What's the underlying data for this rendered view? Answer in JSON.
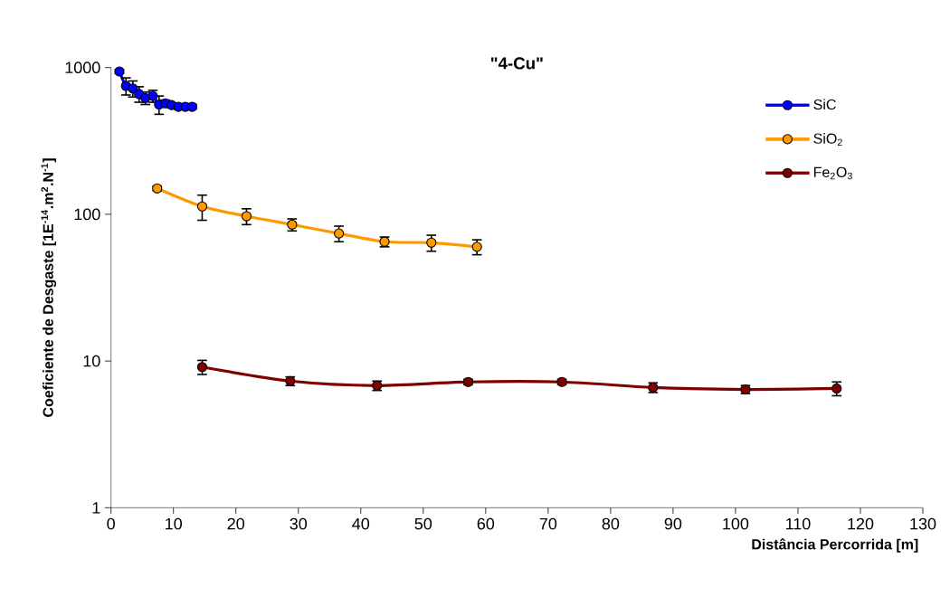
{
  "chart_data": {
    "type": "line",
    "title": "\"4-Cu\"",
    "xlabel": "Distância Percorrida [m]",
    "ylabel": "Coeficiente de Desgaste [1E$^{-14}$.m$^{2}$.N$^{-1}$]",
    "log": "y",
    "xlim": [
      0,
      130
    ],
    "xticks": [
      0,
      10,
      20,
      30,
      40,
      50,
      60,
      70,
      80,
      90,
      100,
      110,
      120,
      130
    ],
    "ylim": [
      1,
      1000
    ],
    "yticks": [
      1,
      10,
      100,
      1000
    ],
    "grid": false,
    "legend": "top right",
    "marker": "circle",
    "line_style": "solid",
    "series": [
      {
        "name": "SiC",
        "color": "#0000ff",
        "x": [
          1.35,
          2.4,
          3.5,
          4.5,
          5.5,
          6.7,
          7.7,
          8.7,
          9.7,
          10.8,
          11.9,
          13.0
        ],
        "values": [
          940,
          750,
          720,
          660,
          620,
          640,
          560,
          570,
          555,
          540,
          540,
          540
        ],
        "errors": [
          30,
          100,
          90,
          80,
          60,
          60,
          80,
          30,
          20,
          20,
          20,
          20
        ]
      },
      {
        "name": "SiO$_{2}$",
        "color": "#ff9900",
        "x": [
          7.4,
          14.6,
          21.7,
          29.0,
          36.5,
          43.8,
          51.3,
          58.6
        ],
        "values": [
          150,
          113,
          97,
          85,
          74,
          65,
          64,
          60
        ],
        "errors": [
          5,
          22,
          12,
          8,
          9,
          5,
          8,
          7
        ]
      },
      {
        "name": "Fe$_{2}$O$_{3}$",
        "color": "#800000",
        "x": [
          14.6,
          28.7,
          42.6,
          57.2,
          72.2,
          86.8,
          101.6,
          116.2
        ],
        "values": [
          9.1,
          7.3,
          6.8,
          7.2,
          7.2,
          6.6,
          6.4,
          6.5
        ],
        "errors": [
          1.0,
          0.5,
          0.5,
          0.3,
          0.3,
          0.5,
          0.4,
          0.7
        ]
      }
    ]
  }
}
